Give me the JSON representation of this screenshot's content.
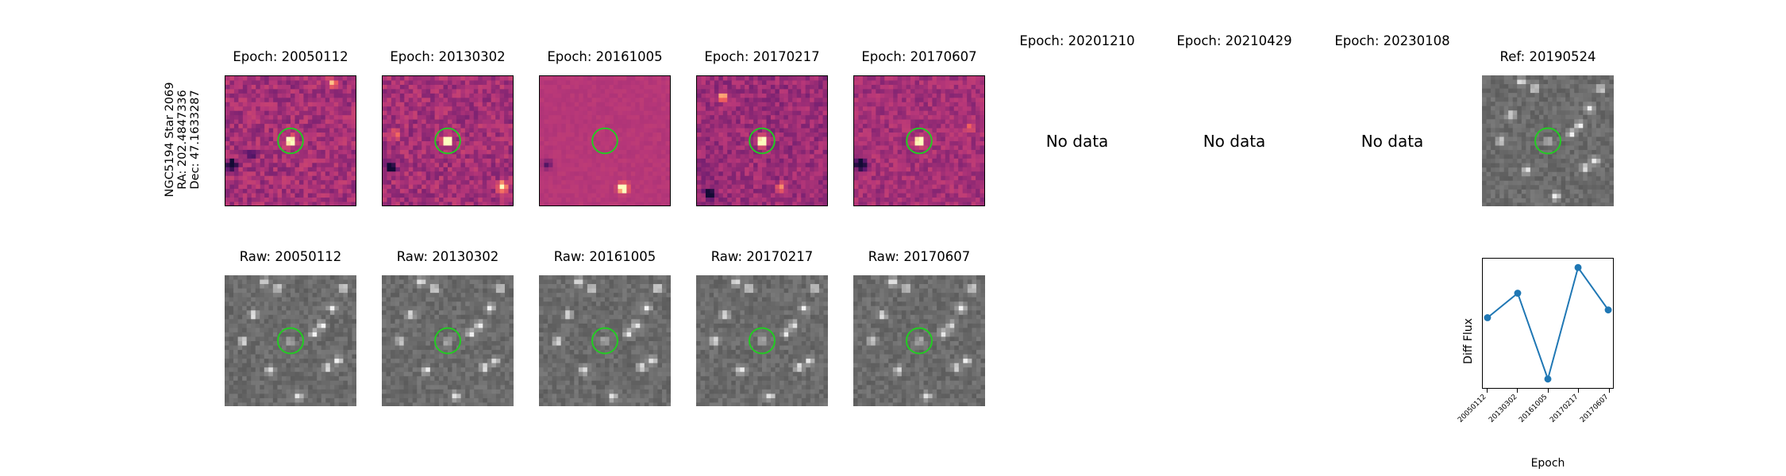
{
  "object": {
    "name": "NGC5194 Star 2069",
    "ra": "RA: 202.4847336",
    "dec": "Dec: 47.1633287"
  },
  "top_row": [
    {
      "title": "Epoch: 20050112",
      "has_data": true,
      "colormap": "magma"
    },
    {
      "title": "Epoch: 20130302",
      "has_data": true,
      "colormap": "magma"
    },
    {
      "title": "Epoch: 20161005",
      "has_data": true,
      "colormap": "magma"
    },
    {
      "title": "Epoch: 20170217",
      "has_data": true,
      "colormap": "magma"
    },
    {
      "title": "Epoch: 20170607",
      "has_data": true,
      "colormap": "magma"
    },
    {
      "title": "Epoch: 20201210",
      "has_data": false,
      "no_data_text": "No data"
    },
    {
      "title": "Epoch: 20210429",
      "has_data": false,
      "no_data_text": "No data"
    },
    {
      "title": "Epoch: 20230108",
      "has_data": false,
      "no_data_text": "No data"
    },
    {
      "title": "Ref: 20190524",
      "has_data": true,
      "colormap": "gray"
    }
  ],
  "bottom_row": [
    {
      "title": "Raw: 20050112",
      "colormap": "gray"
    },
    {
      "title": "Raw: 20130302",
      "colormap": "gray"
    },
    {
      "title": "Raw: 20161005",
      "colormap": "gray"
    },
    {
      "title": "Raw: 20170217",
      "colormap": "gray"
    },
    {
      "title": "Raw: 20170607",
      "colormap": "gray"
    }
  ],
  "marker_color": "#22cc22",
  "chart_data": {
    "type": "line",
    "title": "",
    "xlabel": "Epoch",
    "ylabel": "Diff Flux",
    "categories": [
      "20050112",
      "20130302",
      "20161005",
      "20170217",
      "20170607"
    ],
    "values": [
      0.55,
      0.77,
      0.0,
      1.0,
      0.62
    ],
    "ylim": [
      -0.08,
      1.08
    ],
    "line_color": "#1f77b4",
    "y_ticks_shown": false
  }
}
